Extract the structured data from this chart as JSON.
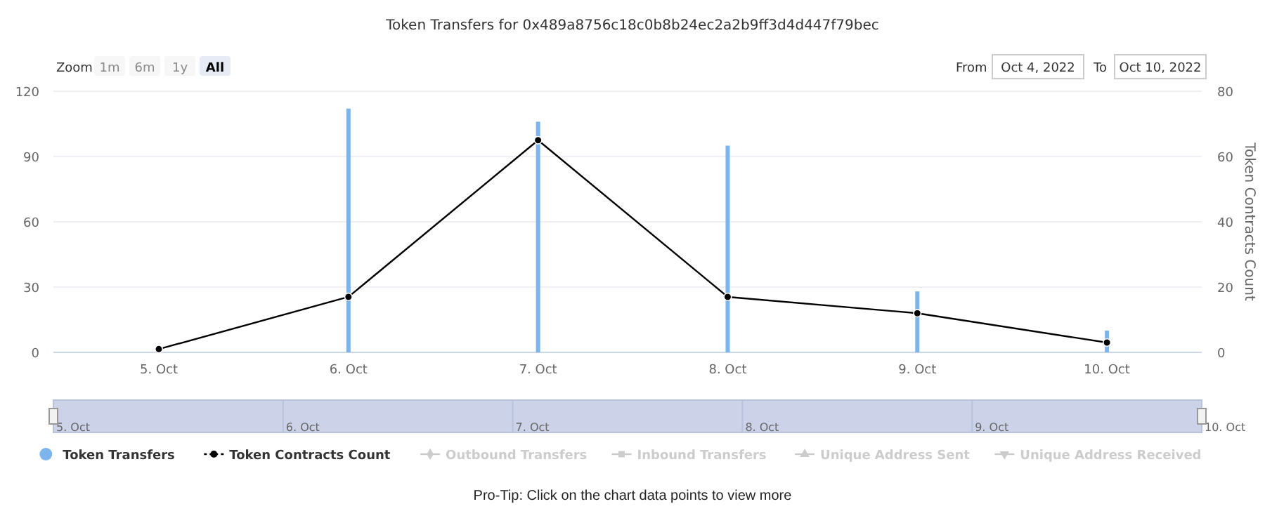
{
  "chart_data": {
    "type": "bar",
    "title": "Token Transfers for 0x489a8756c18c0b8b24ec2a2b9ff3d4d447f79bec",
    "y2label": "Token Contracts Count",
    "categories": [
      "5. Oct",
      "6. Oct",
      "7. Oct",
      "8. Oct",
      "9. Oct",
      "10. Oct"
    ],
    "series": [
      {
        "name": "Token Transfers",
        "color": "#7cb5ec",
        "values": [
          0,
          112,
          106,
          95,
          28,
          10
        ]
      },
      {
        "name": "Token Contracts Count",
        "type": "line",
        "axis": "y2",
        "color": "#000000",
        "marker": "circle",
        "values": [
          1,
          17,
          65,
          17,
          12,
          3
        ]
      },
      {
        "name": "Outbound Transfers",
        "type": "line",
        "color": "#cccccc",
        "marker": "diamond",
        "values": [
          null,
          null,
          null,
          null,
          null,
          null
        ]
      },
      {
        "name": "Inbound Transfers",
        "type": "line",
        "color": "#cccccc",
        "marker": "square",
        "values": [
          null,
          null,
          null,
          null,
          null,
          null
        ]
      },
      {
        "name": "Unique Address Sent",
        "type": "line",
        "color": "#cccccc",
        "marker": "triangle",
        "values": [
          null,
          null,
          null,
          null,
          null,
          null
        ]
      },
      {
        "name": "Unique Address Received",
        "type": "line",
        "color": "#cccccc",
        "marker": "triangle-down",
        "values": [
          null,
          null,
          null,
          null,
          null,
          null
        ]
      }
    ],
    "ylim": [
      0,
      120
    ],
    "yticks": [
      0,
      30,
      60,
      90,
      120
    ],
    "y2lim": [
      0,
      80
    ],
    "y2ticks": [
      0,
      20,
      40,
      60,
      80
    ],
    "grid": "y",
    "legend": "bottom",
    "annotations": [
      "Zoom",
      "1m",
      "6m",
      "1y",
      "All",
      "From",
      "Oct 4, 2022",
      "To",
      "Oct 10, 2022",
      "Pro-Tip: Click on the chart data points to view more"
    ]
  }
}
